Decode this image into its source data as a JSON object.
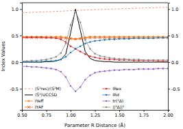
{
  "chart_data": {
    "type": "line",
    "xlabel": "Parameter R Distance (Å)",
    "ylabel": "Index Values",
    "x": [
      0.5,
      0.55,
      0.6,
      0.65,
      0.7,
      0.75,
      0.8,
      0.85,
      0.9,
      0.95,
      1.0,
      1.05,
      1.1,
      1.15,
      1.2,
      1.25,
      1.3,
      1.35,
      1.4,
      1.45,
      1.5,
      1.55,
      1.6,
      1.65,
      1.7,
      1.75,
      1.8,
      1.85,
      1.9,
      1.95,
      2.0
    ],
    "xlim": [
      0.5,
      2.0
    ],
    "xticks": [
      {
        "value": 0.5,
        "label": "0.50"
      },
      {
        "value": 0.75,
        "label": "0.75"
      },
      {
        "value": 1.0,
        "label": "1.00"
      },
      {
        "value": 1.25,
        "label": "1.25"
      },
      {
        "value": 1.5,
        "label": "1.50"
      },
      {
        "value": 1.75,
        "label": "1.75"
      },
      {
        "value": 2.0,
        "label": "2.00"
      }
    ],
    "ylim": [
      -0.9,
      1.12
    ],
    "yticks": [
      {
        "value": -0.5,
        "label": "-0.5"
      },
      {
        "value": 0,
        "label": "0.0"
      },
      {
        "value": 0.5,
        "label": "0.5"
      },
      {
        "value": 1,
        "label": "1.0"
      }
    ],
    "y2lim": [
      -0.9,
      1.12
    ],
    "y2ticks": [
      {
        "value": -0.5,
        "label": "-0.5"
      },
      {
        "value": 0,
        "label": "0.0"
      },
      {
        "value": 0.5,
        "label": "0.5"
      },
      {
        "value": 1,
        "label": "1.0"
      }
    ],
    "grid": false,
    "legend": "lower",
    "series": [
      {
        "name": "⟨S²res⟩/⟨S²M⟩",
        "color": "#ff9896",
        "line_style": "dashed",
        "values": [
          0.93,
          0.934,
          0.938,
          0.942,
          0.946,
          0.95,
          0.954,
          0.958,
          0.962,
          0.966,
          0.97,
          0.974,
          0.978,
          0.982,
          0.986,
          0.99,
          0.993,
          0.996,
          0.999,
          1.002,
          1.005,
          1.008,
          1.011,
          1.014,
          1.017,
          1.02,
          1.023,
          1.026,
          1.029,
          1.032,
          1.035
        ]
      },
      {
        "name": "⟨Ŝ²⟩UCCSD",
        "color": "#000000",
        "line_style": "solid",
        "values": [
          0.0,
          0.0,
          0.0,
          0.0,
          0.0,
          0.01,
          0.01,
          0.02,
          0.05,
          0.15,
          0.55,
          1.0,
          0.6,
          0.2,
          0.07,
          0.03,
          0.02,
          0.01,
          0.01,
          0.0,
          0.0,
          0.0,
          0.0,
          0.0,
          0.0,
          0.0,
          0.0,
          0.0,
          0.0,
          0.0,
          0.0
        ]
      },
      {
        "name": "IYeff",
        "color": "#ff7f0e",
        "line_style": "solid",
        "marker": "plus",
        "values": [
          0.48,
          0.48,
          0.48,
          0.48,
          0.48,
          0.48,
          0.48,
          0.48,
          0.48,
          0.47,
          0.45,
          0.44,
          0.45,
          0.47,
          0.48,
          0.48,
          0.48,
          0.48,
          0.48,
          0.48,
          0.48,
          0.48,
          0.48,
          0.48,
          0.48,
          0.48,
          0.48,
          0.48,
          0.48,
          0.48,
          0.48
        ]
      },
      {
        "name": "IYAF",
        "color": "#e8601c",
        "line_style": "solid",
        "marker": "x",
        "values": [
          0.46,
          0.46,
          0.46,
          0.46,
          0.46,
          0.46,
          0.46,
          0.46,
          0.46,
          0.45,
          0.44,
          0.43,
          0.44,
          0.45,
          0.46,
          0.46,
          0.46,
          0.46,
          0.46,
          0.46,
          0.46,
          0.46,
          0.46,
          0.46,
          0.46,
          0.46,
          0.46,
          0.46,
          0.46,
          0.46,
          0.46
        ]
      },
      {
        "name": "IRex",
        "color": "#d62728",
        "line_style": "solid",
        "marker": "circle",
        "values": [
          0.47,
          0.47,
          0.47,
          0.47,
          0.47,
          0.46,
          0.46,
          0.45,
          0.43,
          0.38,
          0.3,
          0.25,
          0.2,
          0.15,
          0.11,
          0.09,
          0.07,
          0.06,
          0.05,
          0.05,
          0.04,
          0.04,
          0.04,
          0.03,
          0.03,
          0.03,
          0.03,
          0.03,
          0.02,
          0.02,
          0.02
        ]
      },
      {
        "name": "IRd",
        "color": "#1f77b4",
        "line_style": "solid",
        "marker": "circle",
        "values": [
          0.01,
          0.01,
          0.01,
          0.01,
          0.01,
          0.02,
          0.02,
          0.03,
          0.05,
          0.1,
          0.18,
          0.25,
          0.3,
          0.35,
          0.38,
          0.4,
          0.41,
          0.42,
          0.43,
          0.43,
          0.44,
          0.44,
          0.44,
          0.45,
          0.45,
          0.45,
          0.45,
          0.45,
          0.46,
          0.46,
          0.46
        ]
      },
      {
        "name": "tr(¹Δ)",
        "color": "#9467bd",
        "line_style": "solid",
        "marker": "circle",
        "values": [
          -0.08,
          -0.08,
          -0.09,
          -0.09,
          -0.1,
          -0.11,
          -0.12,
          -0.14,
          -0.18,
          -0.28,
          -0.45,
          -0.55,
          -0.47,
          -0.33,
          -0.25,
          -0.2,
          -0.18,
          -0.17,
          -0.16,
          -0.15,
          -0.15,
          -0.14,
          -0.14,
          -0.14,
          -0.13,
          -0.13,
          -0.13,
          -0.13,
          -0.12,
          -0.12,
          -0.12
        ]
      },
      {
        "name": "||²Δ||²",
        "color": "#8c8c8c",
        "line_style": "solid",
        "marker": "circle",
        "values": [
          0.02,
          0.02,
          0.03,
          0.03,
          0.04,
          0.05,
          0.07,
          0.1,
          0.17,
          0.35,
          0.7,
          0.95,
          0.75,
          0.42,
          0.25,
          0.16,
          0.12,
          0.1,
          0.08,
          0.07,
          0.06,
          0.06,
          0.05,
          0.05,
          0.05,
          0.04,
          0.04,
          0.04,
          0.04,
          0.04,
          0.04
        ]
      }
    ]
  }
}
